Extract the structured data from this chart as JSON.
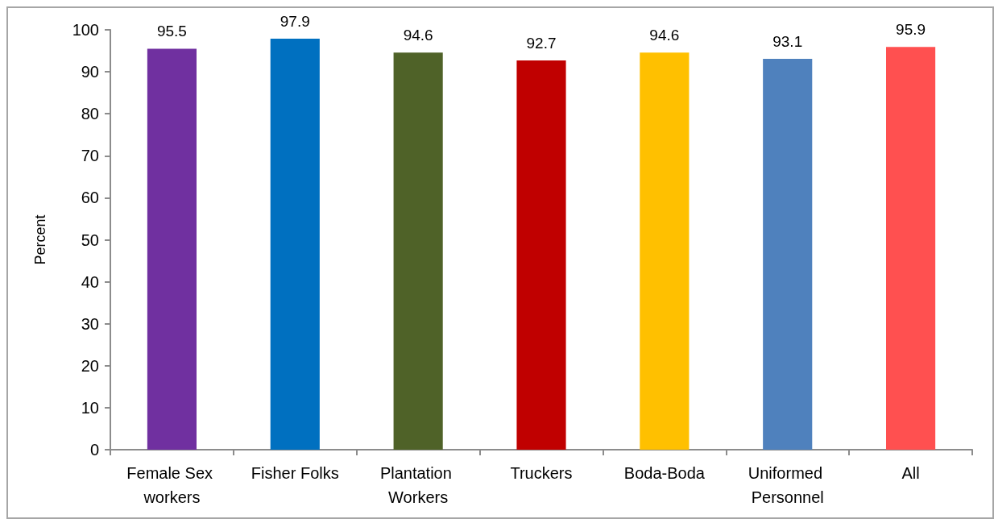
{
  "chart_data": {
    "type": "bar",
    "ylabel": "Percent",
    "categories": [
      "Female Sex workers",
      "Fisher Folks",
      "Plantation Workers",
      "Truckers",
      "Boda-Boda",
      "Uniformed Personnel",
      "All"
    ],
    "values": [
      95.5,
      97.9,
      94.6,
      92.7,
      94.6,
      93.1,
      95.9
    ],
    "colors": [
      "#7030a0",
      "#0070c0",
      "#4f6228",
      "#c00000",
      "#ffc000",
      "#4f81bd",
      "#ff5050"
    ],
    "ylim": [
      0,
      100
    ],
    "yticks": [
      0,
      10,
      20,
      30,
      40,
      50,
      60,
      70,
      80,
      90,
      100
    ],
    "data_labels": true,
    "grid": false
  }
}
